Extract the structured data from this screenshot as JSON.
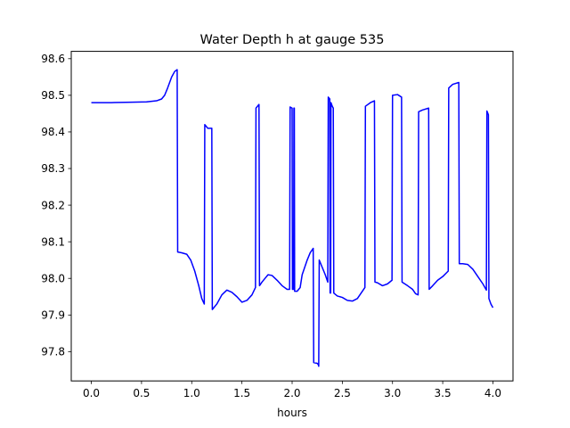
{
  "chart_data": {
    "type": "line",
    "title": "Water Depth h at gauge 535",
    "xlabel": "hours",
    "ylabel": "",
    "xlim": [
      -0.2,
      4.2
    ],
    "ylim": [
      97.72,
      98.62
    ],
    "xticks": [
      0.0,
      0.5,
      1.0,
      1.5,
      2.0,
      2.5,
      3.0,
      3.5,
      4.0
    ],
    "xtick_labels": [
      "0.0",
      "0.5",
      "1.0",
      "1.5",
      "2.0",
      "2.5",
      "3.0",
      "3.5",
      "4.0"
    ],
    "yticks": [
      97.8,
      97.9,
      98.0,
      98.1,
      98.2,
      98.3,
      98.4,
      98.5,
      98.6
    ],
    "ytick_labels": [
      "97.8",
      "97.9",
      "98.0",
      "98.1",
      "98.2",
      "98.3",
      "98.4",
      "98.5",
      "98.6"
    ],
    "grid": false,
    "legend": "none",
    "series": [
      {
        "color": "#0000ff",
        "points": [
          [
            0.0,
            98.48
          ],
          [
            0.2,
            98.48
          ],
          [
            0.4,
            98.481
          ],
          [
            0.55,
            98.482
          ],
          [
            0.65,
            98.485
          ],
          [
            0.7,
            98.49
          ],
          [
            0.73,
            98.5
          ],
          [
            0.76,
            98.52
          ],
          [
            0.8,
            98.55
          ],
          [
            0.83,
            98.565
          ],
          [
            0.855,
            98.57
          ],
          [
            0.86,
            98.072
          ],
          [
            0.9,
            98.07
          ],
          [
            0.95,
            98.066
          ],
          [
            0.99,
            98.05
          ],
          [
            1.03,
            98.02
          ],
          [
            1.07,
            97.98
          ],
          [
            1.1,
            97.945
          ],
          [
            1.125,
            97.93
          ],
          [
            1.13,
            98.42
          ],
          [
            1.16,
            98.41
          ],
          [
            1.2,
            98.41
          ],
          [
            1.205,
            97.915
          ],
          [
            1.25,
            97.93
          ],
          [
            1.3,
            97.955
          ],
          [
            1.35,
            97.968
          ],
          [
            1.4,
            97.962
          ],
          [
            1.45,
            97.95
          ],
          [
            1.5,
            97.935
          ],
          [
            1.55,
            97.94
          ],
          [
            1.6,
            97.955
          ],
          [
            1.635,
            97.975
          ],
          [
            1.64,
            98.465
          ],
          [
            1.67,
            98.475
          ],
          [
            1.675,
            97.98
          ],
          [
            1.7,
            97.99
          ],
          [
            1.73,
            98.0
          ],
          [
            1.76,
            98.01
          ],
          [
            1.8,
            98.008
          ],
          [
            1.85,
            97.995
          ],
          [
            1.9,
            97.98
          ],
          [
            1.95,
            97.97
          ],
          [
            1.975,
            97.97
          ],
          [
            1.98,
            98.468
          ],
          [
            2.0,
            98.465
          ],
          [
            2.003,
            97.97
          ],
          [
            2.015,
            97.97
          ],
          [
            2.018,
            98.465
          ],
          [
            2.022,
            98.465
          ],
          [
            2.025,
            97.965
          ],
          [
            2.05,
            97.965
          ],
          [
            2.08,
            97.975
          ],
          [
            2.1,
            98.01
          ],
          [
            2.15,
            98.05
          ],
          [
            2.18,
            98.07
          ],
          [
            2.21,
            98.082
          ],
          [
            2.215,
            97.77
          ],
          [
            2.25,
            97.768
          ],
          [
            2.26,
            97.765
          ],
          [
            2.265,
            97.76
          ],
          [
            2.27,
            98.05
          ],
          [
            2.3,
            98.03
          ],
          [
            2.33,
            98.01
          ],
          [
            2.355,
            97.99
          ],
          [
            2.36,
            98.495
          ],
          [
            2.375,
            98.49
          ],
          [
            2.378,
            97.96
          ],
          [
            2.384,
            97.96
          ],
          [
            2.387,
            98.48
          ],
          [
            2.4,
            98.47
          ],
          [
            2.41,
            98.465
          ],
          [
            2.415,
            97.96
          ],
          [
            2.45,
            97.952
          ],
          [
            2.5,
            97.948
          ],
          [
            2.55,
            97.94
          ],
          [
            2.6,
            97.938
          ],
          [
            2.65,
            97.945
          ],
          [
            2.7,
            97.965
          ],
          [
            2.725,
            97.975
          ],
          [
            2.73,
            98.47
          ],
          [
            2.78,
            98.48
          ],
          [
            2.82,
            98.485
          ],
          [
            2.825,
            97.99
          ],
          [
            2.85,
            97.988
          ],
          [
            2.9,
            97.98
          ],
          [
            2.95,
            97.985
          ],
          [
            2.995,
            97.995
          ],
          [
            3.0,
            98.5
          ],
          [
            3.05,
            98.502
          ],
          [
            3.09,
            98.495
          ],
          [
            3.095,
            97.99
          ],
          [
            3.15,
            97.98
          ],
          [
            3.2,
            97.97
          ],
          [
            3.23,
            97.958
          ],
          [
            3.255,
            97.955
          ],
          [
            3.26,
            98.455
          ],
          [
            3.3,
            98.46
          ],
          [
            3.36,
            98.465
          ],
          [
            3.365,
            97.97
          ],
          [
            3.4,
            97.98
          ],
          [
            3.45,
            97.995
          ],
          [
            3.5,
            98.005
          ],
          [
            3.555,
            98.02
          ],
          [
            3.56,
            98.52
          ],
          [
            3.6,
            98.53
          ],
          [
            3.66,
            98.535
          ],
          [
            3.665,
            98.04
          ],
          [
            3.7,
            98.04
          ],
          [
            3.75,
            98.038
          ],
          [
            3.8,
            98.025
          ],
          [
            3.85,
            98.005
          ],
          [
            3.9,
            97.985
          ],
          [
            3.935,
            97.968
          ],
          [
            3.94,
            98.457
          ],
          [
            3.955,
            98.447
          ],
          [
            3.96,
            97.945
          ],
          [
            3.98,
            97.93
          ],
          [
            4.0,
            97.92
          ]
        ]
      }
    ]
  }
}
